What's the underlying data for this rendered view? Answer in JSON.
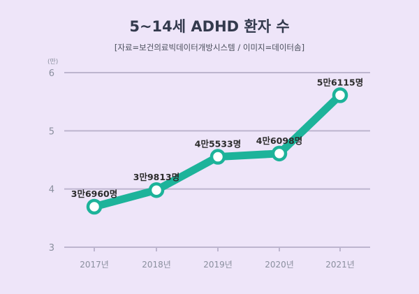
{
  "title": "5~14세 ADHD 환자 수",
  "source": "[자료=보건의료빅데이터개방시스템 / 이미지=데이터솜]",
  "colors": {
    "background": "#eee5f9",
    "line": "#1db39a",
    "grid": "#bdb5cf",
    "marker_fill": "#ffffff"
  },
  "chart_data": {
    "type": "line",
    "title": "5~14세 ADHD 환자 수",
    "ylabel": "(만)",
    "ylim": [
      3,
      6
    ],
    "y_ticks": [
      "3",
      "4",
      "5",
      "6"
    ],
    "grid": true,
    "categories": [
      "2017년",
      "2018년",
      "2019년",
      "2020년",
      "2021년"
    ],
    "series": [
      {
        "values": [
          3.696,
          3.9813,
          4.5533,
          4.6098,
          5.6115
        ],
        "labels": [
          "3만6960명",
          "3만9813명",
          "4만5533명",
          "4만6098명",
          "5만6115명"
        ]
      }
    ]
  }
}
